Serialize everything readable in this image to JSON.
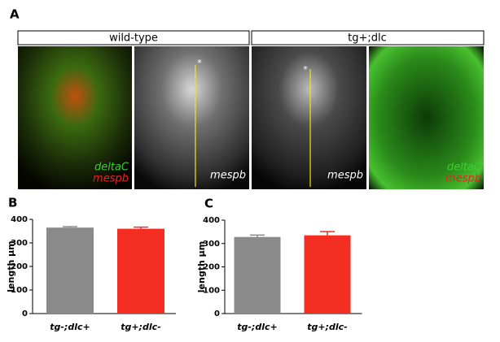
{
  "panel_labels": [
    "A",
    "B",
    "C"
  ],
  "headers": [
    "wild-type",
    "tg+;dlc"
  ],
  "image_labels": [
    [
      "deltaC",
      "mespb"
    ],
    [
      "mespb"
    ],
    [
      "mespb"
    ],
    [
      "deltaC",
      "mespb"
    ]
  ],
  "chart_data": [
    {
      "type": "bar",
      "ylabel": "length µm",
      "categories": [
        "tg-;dlc+",
        "tg+;dlc-"
      ],
      "values": [
        365,
        360
      ],
      "errors": [
        4,
        7
      ],
      "colors": [
        "#8a8a8a",
        "#f42d22"
      ],
      "ylim": [
        0,
        400
      ],
      "yticks": [
        0,
        100,
        200,
        300,
        400
      ]
    },
    {
      "type": "bar",
      "ylabel": "length µm",
      "categories": [
        "tg-;dlc+",
        "tg+;dlc-"
      ],
      "values": [
        328,
        335
      ],
      "errors": [
        8,
        16
      ],
      "colors": [
        "#8a8a8a",
        "#f42d22"
      ],
      "ylim": [
        0,
        400
      ],
      "yticks": [
        0,
        100,
        200,
        300,
        400
      ]
    }
  ]
}
